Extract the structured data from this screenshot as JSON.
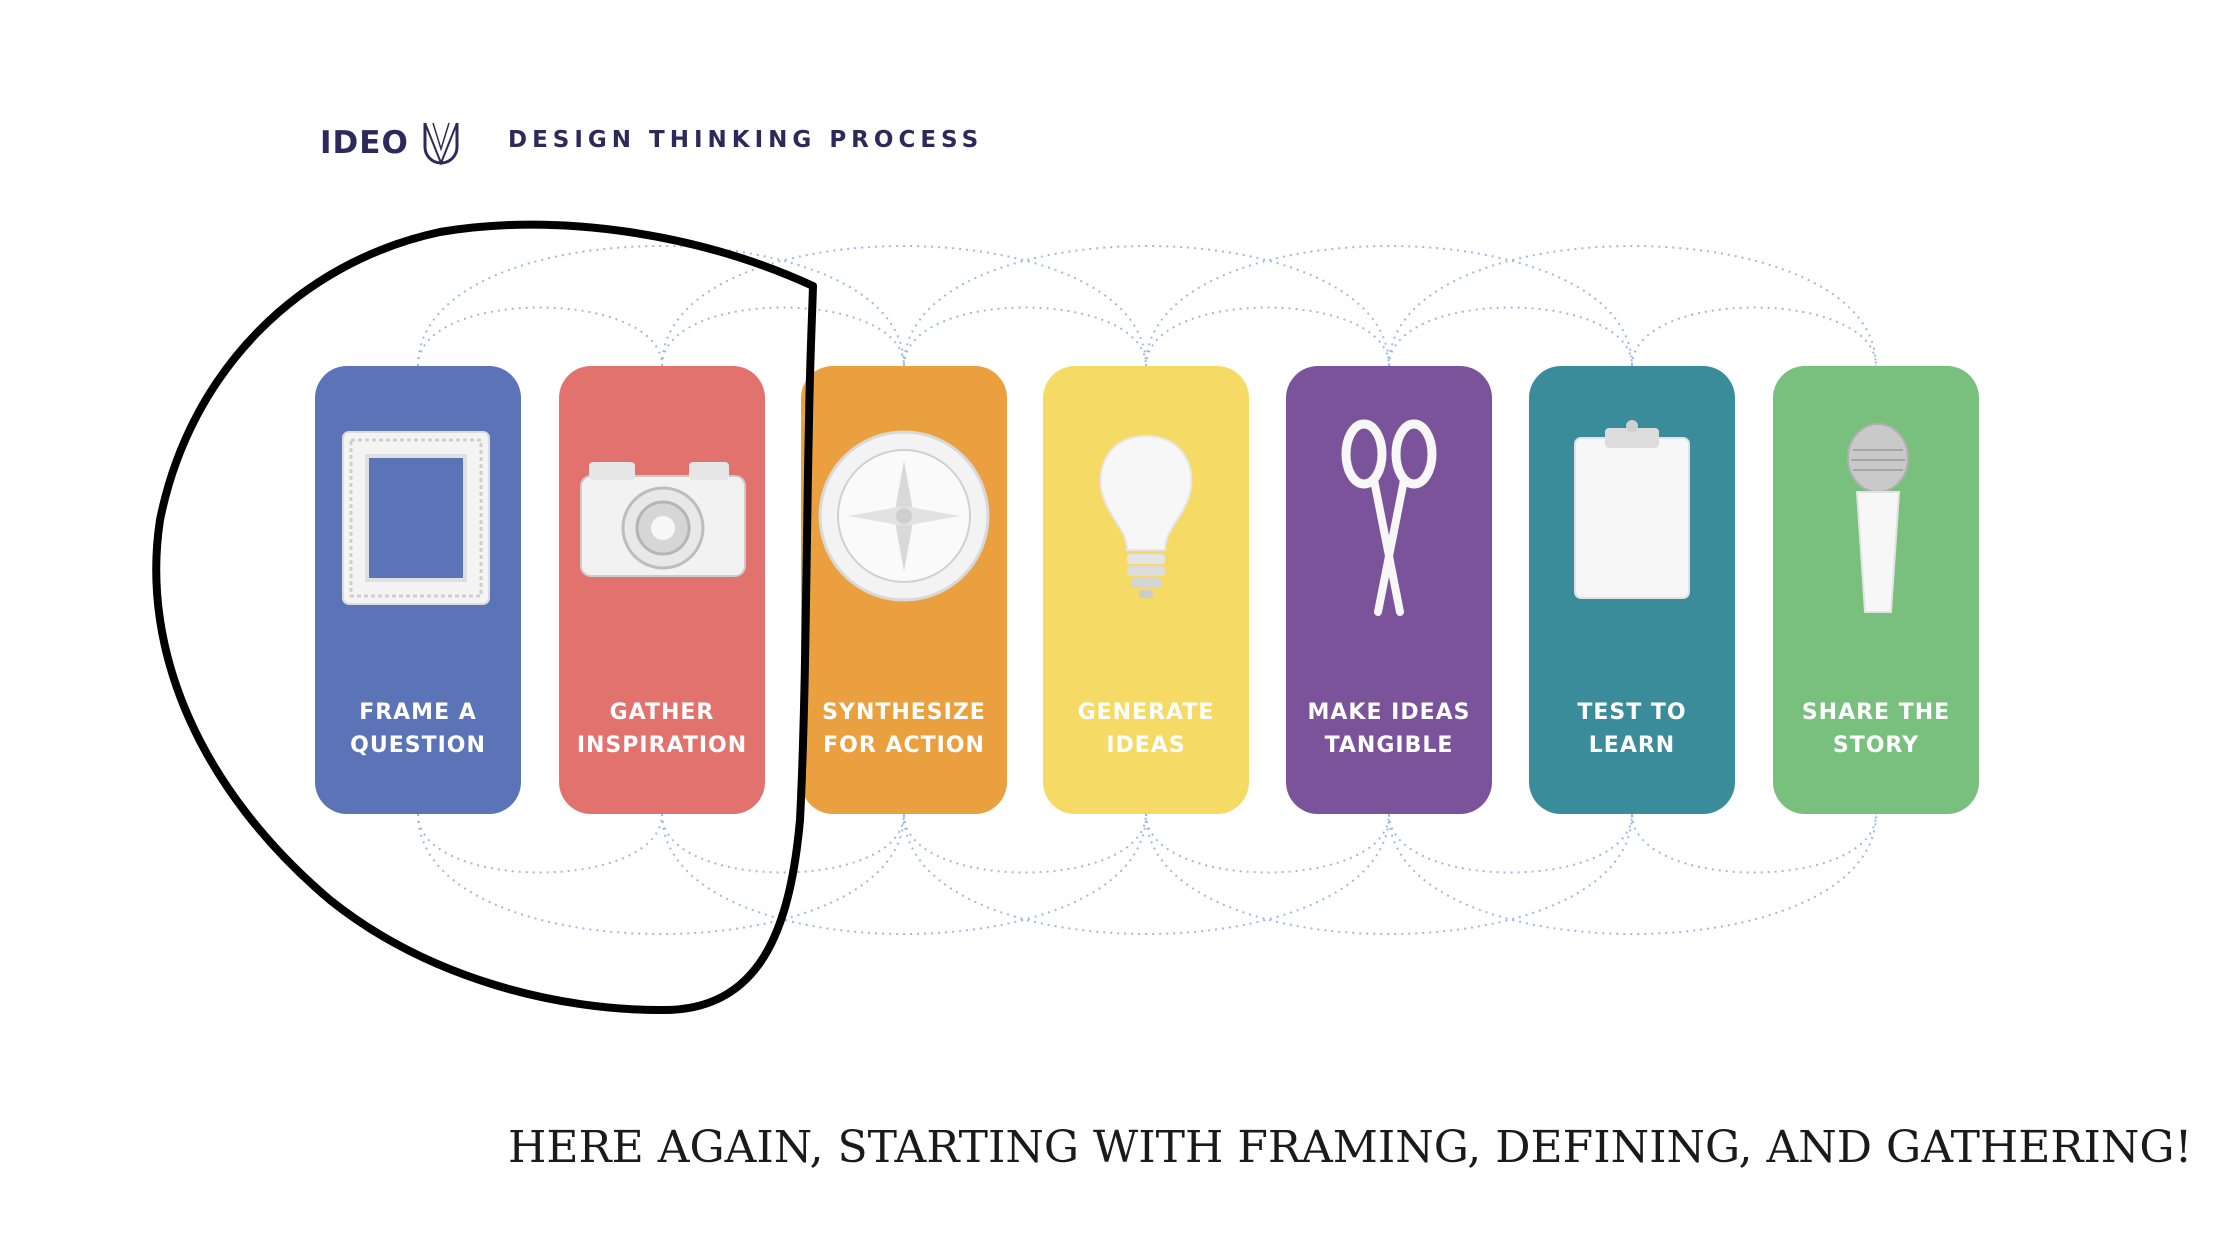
{
  "brand": {
    "logo_text": "IDEO",
    "title": "DESIGN THINKING PROCESS"
  },
  "steps": [
    {
      "label": "FRAME A\nQUESTION",
      "color": "#5b74b7",
      "icon": "picture-frame-icon"
    },
    {
      "label": "GATHER\nINSPIRATION",
      "color": "#e2726e",
      "icon": "camera-icon"
    },
    {
      "label": "SYNTHESIZE\nFOR ACTION",
      "color": "#eba03f",
      "icon": "compass-icon"
    },
    {
      "label": "GENERATE\nIDEAS",
      "color": "#f5db66",
      "icon": "light-bulb-icon"
    },
    {
      "label": "MAKE IDEAS\nTANGIBLE",
      "color": "#7b539b",
      "icon": "scissors-icon"
    },
    {
      "label": "TEST TO\nLEARN",
      "color": "#3a8c9b",
      "icon": "clipboard-icon"
    },
    {
      "label": "SHARE THE\nSTORY",
      "color": "#79bf7e",
      "icon": "microphone-icon"
    }
  ],
  "caption": "HERE AGAIN, STARTING WITH FRAMING, DEFINING, AND GATHERING!",
  "colors": {
    "dotted_arc": "#9fb9e2",
    "annotation": "#000000",
    "brand": "#2c2a5b"
  }
}
